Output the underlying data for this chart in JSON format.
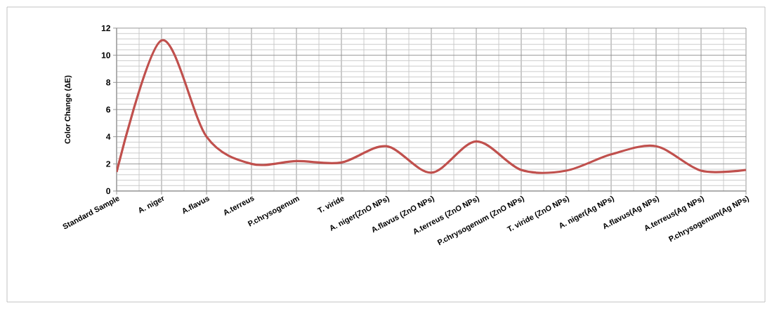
{
  "chart_data": {
    "type": "line",
    "ylabel": "Color Change (ΔE)",
    "categories": [
      "Standard Sample",
      "A.  niger",
      "A.flavus",
      "A.terreus",
      "P.chrysogenum",
      "T. viride",
      "A.  niger(ZnO NPs)",
      "A.flavus (ZnO NPs)",
      "A.terreus  (ZnO NPs)",
      "P.chrysogenum (ZnO NPs)",
      "T. viride (ZnO NPs)",
      "A.  niger(Ag NPs)",
      "A.flavus(Ag NPs)",
      "A.terreus(Ag NPs)",
      "P.chrysogenum(Ag NPs)"
    ],
    "values": [
      1.4,
      11.1,
      4.0,
      2.0,
      2.2,
      2.1,
      3.3,
      1.35,
      3.65,
      1.55,
      1.5,
      2.7,
      3.3,
      1.5,
      1.55
    ],
    "color": "#c0504d",
    "ylim": [
      0,
      12
    ],
    "yticks": [
      0,
      2,
      4,
      6,
      8,
      10,
      12
    ],
    "grid": true,
    "marker": "none",
    "line_style": "solid"
  }
}
